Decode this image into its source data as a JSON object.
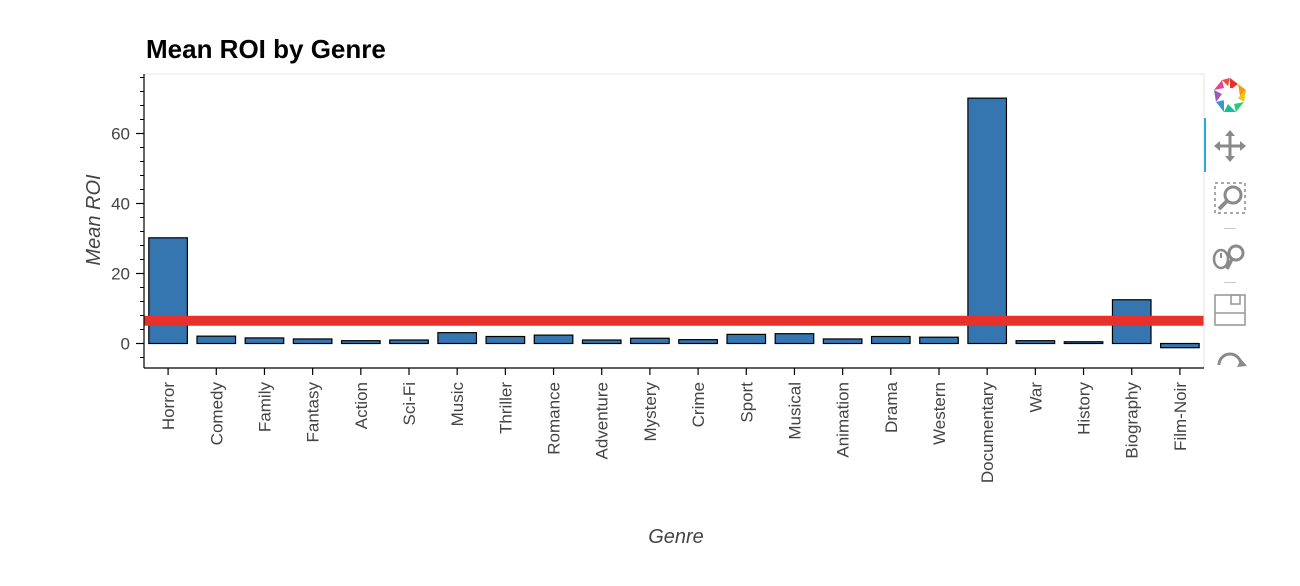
{
  "chart_data": {
    "type": "bar",
    "title": "Mean ROI by Genre",
    "xlabel": "Genre",
    "ylabel": "Mean ROI",
    "categories": [
      "Horror",
      "Comedy",
      "Family",
      "Fantasy",
      "Action",
      "Sci-Fi",
      "Music",
      "Thriller",
      "Romance",
      "Adventure",
      "Mystery",
      "Crime",
      "Sport",
      "Musical",
      "Animation",
      "Drama",
      "Western",
      "Documentary",
      "War",
      "History",
      "Biography",
      "Film-Noir"
    ],
    "values": [
      30.2,
      2.1,
      1.6,
      1.3,
      0.8,
      1.0,
      3.1,
      2.0,
      2.4,
      1.0,
      1.5,
      1.1,
      2.6,
      2.8,
      1.3,
      2.0,
      1.8,
      70.1,
      0.8,
      0.5,
      12.5,
      -1.2
    ],
    "ylim": [
      -7,
      77
    ],
    "yticks": [
      0,
      20,
      40,
      60
    ],
    "reference_line": {
      "value": 6.5,
      "color": "#e8312a"
    },
    "bar_color": "#3575b0",
    "grid": false
  },
  "toolbar": {
    "tools": [
      {
        "name": "bokeh-logo-icon"
      },
      {
        "name": "pan-icon"
      },
      {
        "name": "box-zoom-icon"
      },
      {
        "name": "wheel-zoom-icon"
      },
      {
        "name": "save-icon"
      },
      {
        "name": "reset-icon"
      }
    ]
  }
}
